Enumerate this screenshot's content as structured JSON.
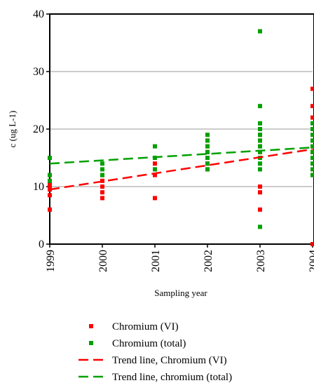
{
  "chart_data": {
    "type": "scatter",
    "xlabel": "Sampling year",
    "ylabel": "c (ug L-1)",
    "xlim": [
      1999,
      2004
    ],
    "xticks": [
      1999,
      2000,
      2001,
      2002,
      2003,
      2004
    ],
    "ylim": [
      0,
      40
    ],
    "yticks": [
      0,
      10,
      20,
      30,
      40
    ],
    "grid": true,
    "series": [
      {
        "name": "Chromium (VI)",
        "color": "#ff0000",
        "kind": "scatter",
        "x": [
          1999,
          1999,
          1999,
          1999,
          1999,
          1999,
          2000,
          2000,
          2000,
          2000,
          2000,
          2001,
          2001,
          2001,
          2001,
          2001,
          2002,
          2002,
          2002,
          2002,
          2002,
          2002,
          2003,
          2003,
          2003,
          2003,
          2003,
          2003,
          2003,
          2003,
          2004,
          2004,
          2004,
          2004,
          2004,
          2004,
          2004,
          2004
        ],
        "values": [
          6,
          8.5,
          9.5,
          10,
          10.5,
          11,
          8,
          9,
          10,
          11,
          12,
          8,
          12,
          13,
          14,
          15,
          13,
          14,
          15,
          16,
          17,
          18,
          6,
          9,
          10,
          15,
          16,
          17,
          18,
          19,
          0,
          12,
          16,
          18,
          20,
          22,
          24,
          27
        ]
      },
      {
        "name": "Chromium (total)",
        "color": "#00a000",
        "kind": "scatter",
        "x": [
          1999,
          1999,
          1999,
          2000,
          2000,
          2000,
          2001,
          2001,
          2001,
          2002,
          2002,
          2002,
          2002,
          2002,
          2002,
          2002,
          2003,
          2003,
          2003,
          2003,
          2003,
          2003,
          2003,
          2003,
          2003,
          2003,
          2003,
          2003,
          2004,
          2004,
          2004,
          2004,
          2004,
          2004,
          2004,
          2004,
          2004,
          2004
        ],
        "values": [
          11,
          12,
          15,
          12,
          13,
          14,
          13,
          15,
          17,
          13,
          14,
          15,
          16,
          17,
          18,
          19,
          3,
          13,
          14,
          15,
          16,
          17,
          18,
          19,
          20,
          21,
          24,
          37,
          12,
          13,
          14,
          15,
          16,
          17,
          18,
          19,
          20,
          21
        ]
      },
      {
        "name": "Trend line, Chromium (VI)",
        "color": "#ff0000",
        "kind": "line",
        "x": [
          1999,
          2004
        ],
        "values": [
          9.5,
          16.5
        ]
      },
      {
        "name": "Trend line, chromium (total)",
        "color": "#00a000",
        "kind": "line",
        "x": [
          1999,
          2004
        ],
        "values": [
          14,
          16.8
        ]
      }
    ]
  }
}
